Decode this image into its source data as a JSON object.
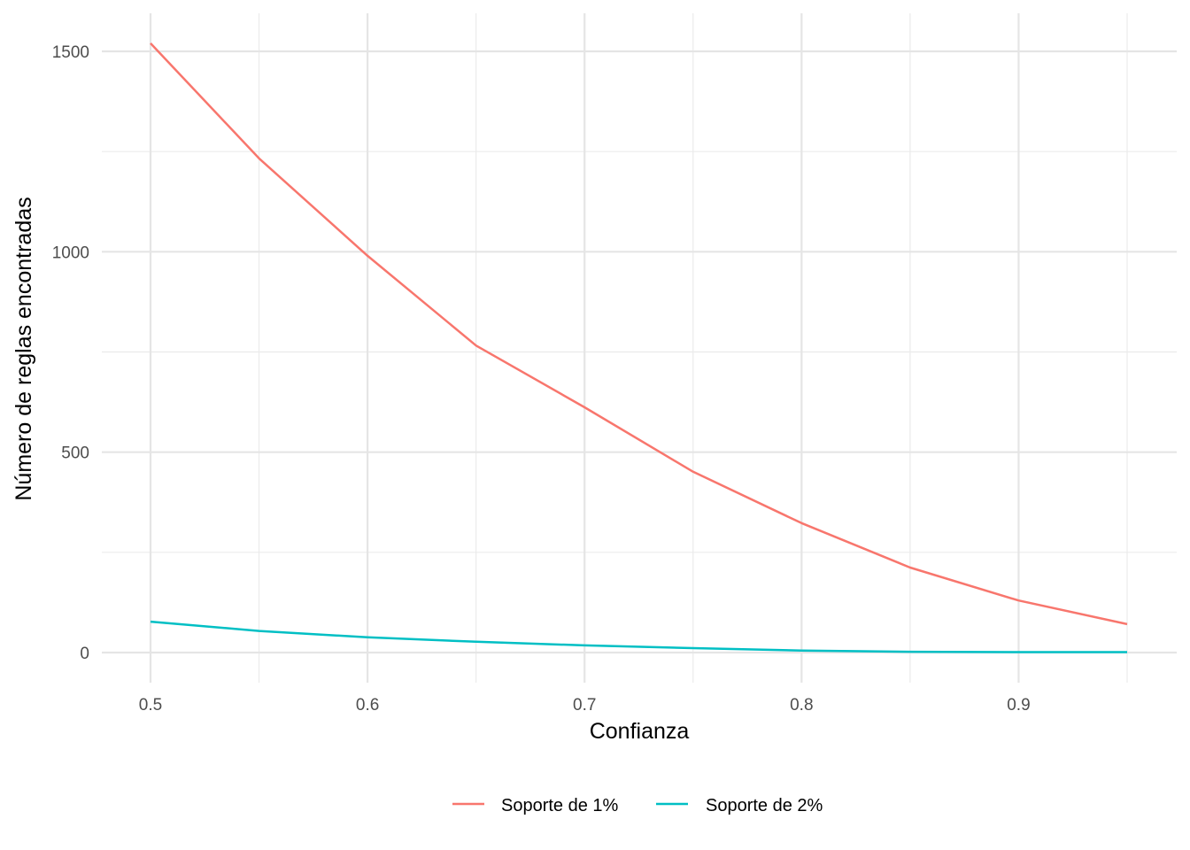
{
  "chart_data": {
    "type": "line",
    "title": "",
    "xlabel": "Confianza",
    "ylabel": "Número de reglas encontradas",
    "x": [
      0.5,
      0.55,
      0.6,
      0.65,
      0.7,
      0.75,
      0.8,
      0.85,
      0.9,
      0.95
    ],
    "series": [
      {
        "name": "Soporte de 1%",
        "color": "#F8766D",
        "values": [
          1520,
          1233,
          990,
          766,
          612,
          451,
          323,
          212,
          130,
          71
        ]
      },
      {
        "name": "Soporte de 2%",
        "color": "#00BFC4",
        "values": [
          77,
          54,
          38,
          27,
          18,
          11,
          5,
          2,
          1,
          1
        ]
      }
    ],
    "x_ticks": [
      "0.5",
      "0.6",
      "0.7",
      "0.8",
      "0.9"
    ],
    "x_tick_values": [
      0.5,
      0.6,
      0.7,
      0.8,
      0.9
    ],
    "y_ticks": [
      "0",
      "500",
      "1000",
      "1500"
    ],
    "y_tick_values": [
      0,
      500,
      1000,
      1500
    ],
    "xlim": [
      0.4775,
      0.9725
    ],
    "ylim": [
      -76,
      1596
    ],
    "grid": true,
    "legend_position": "bottom"
  },
  "legend": {
    "items": [
      {
        "label": "Soporte de 1%",
        "color": "#F8766D"
      },
      {
        "label": "Soporte de 2%",
        "color": "#00BFC4"
      }
    ]
  },
  "axes": {
    "x_title": "Confianza",
    "y_title": "Número de reglas encontradas"
  }
}
